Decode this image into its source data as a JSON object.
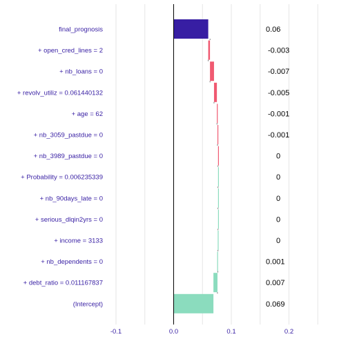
{
  "chart_data": {
    "type": "waterfall",
    "title": "",
    "xlabel": "",
    "ylabel": "",
    "xlim": [
      -0.1,
      0.25
    ],
    "x_ticks": [
      -0.1,
      0.0,
      0.1,
      0.2
    ],
    "x_tick_labels": [
      "-0.1",
      "0.0",
      "0.1",
      "0.2"
    ],
    "grid": true,
    "colors": {
      "positive": "#8bdcbe",
      "negative": "#f05a71",
      "final": "#371ea3",
      "label": "#371ea3",
      "grid": "#e6e6e6",
      "connector": "#222222"
    },
    "bars": [
      {
        "label": "final_prognosis",
        "value_label": "0.06",
        "start": 0.0,
        "end": 0.06,
        "kind": "final"
      },
      {
        "label": "+ open_cred_lines = 2",
        "value_label": "-0.003",
        "start": 0.063,
        "end": 0.06,
        "kind": "negative"
      },
      {
        "label": "+ nb_loans = 0",
        "value_label": "-0.007",
        "start": 0.07,
        "end": 0.063,
        "kind": "negative"
      },
      {
        "label": "+ revolv_utiliz = 0.061440132",
        "value_label": "-0.005",
        "start": 0.075,
        "end": 0.07,
        "kind": "negative"
      },
      {
        "label": "+ age = 62",
        "value_label": "-0.001",
        "start": 0.076,
        "end": 0.075,
        "kind": "negative"
      },
      {
        "label": "+ nb_3059_pastdue = 0",
        "value_label": "-0.001",
        "start": 0.077,
        "end": 0.076,
        "kind": "negative"
      },
      {
        "label": "+ nb_3989_pastdue = 0",
        "value_label": "0",
        "start": 0.077,
        "end": 0.077,
        "kind": "negative"
      },
      {
        "label": "+ Probability = 0.006235339",
        "value_label": "0",
        "start": 0.077,
        "end": 0.077,
        "kind": "positive"
      },
      {
        "label": "+ nb_90days_late = 0",
        "value_label": "0",
        "start": 0.077,
        "end": 0.077,
        "kind": "positive"
      },
      {
        "label": "+ serious_dlqin2yrs = 0",
        "value_label": "0",
        "start": 0.077,
        "end": 0.077,
        "kind": "positive"
      },
      {
        "label": "+ income = 3133",
        "value_label": "0",
        "start": 0.0765,
        "end": 0.077,
        "kind": "positive"
      },
      {
        "label": "+ nb_dependents = 0",
        "value_label": "0.001",
        "start": 0.0755,
        "end": 0.0765,
        "kind": "positive"
      },
      {
        "label": "+ debt_ratio = 0.011167837",
        "value_label": "0.007",
        "start": 0.069,
        "end": 0.076,
        "kind": "positive"
      },
      {
        "label": "(Intercept)",
        "value_label": "0.069",
        "start": 0.0,
        "end": 0.069,
        "kind": "positive"
      }
    ]
  }
}
